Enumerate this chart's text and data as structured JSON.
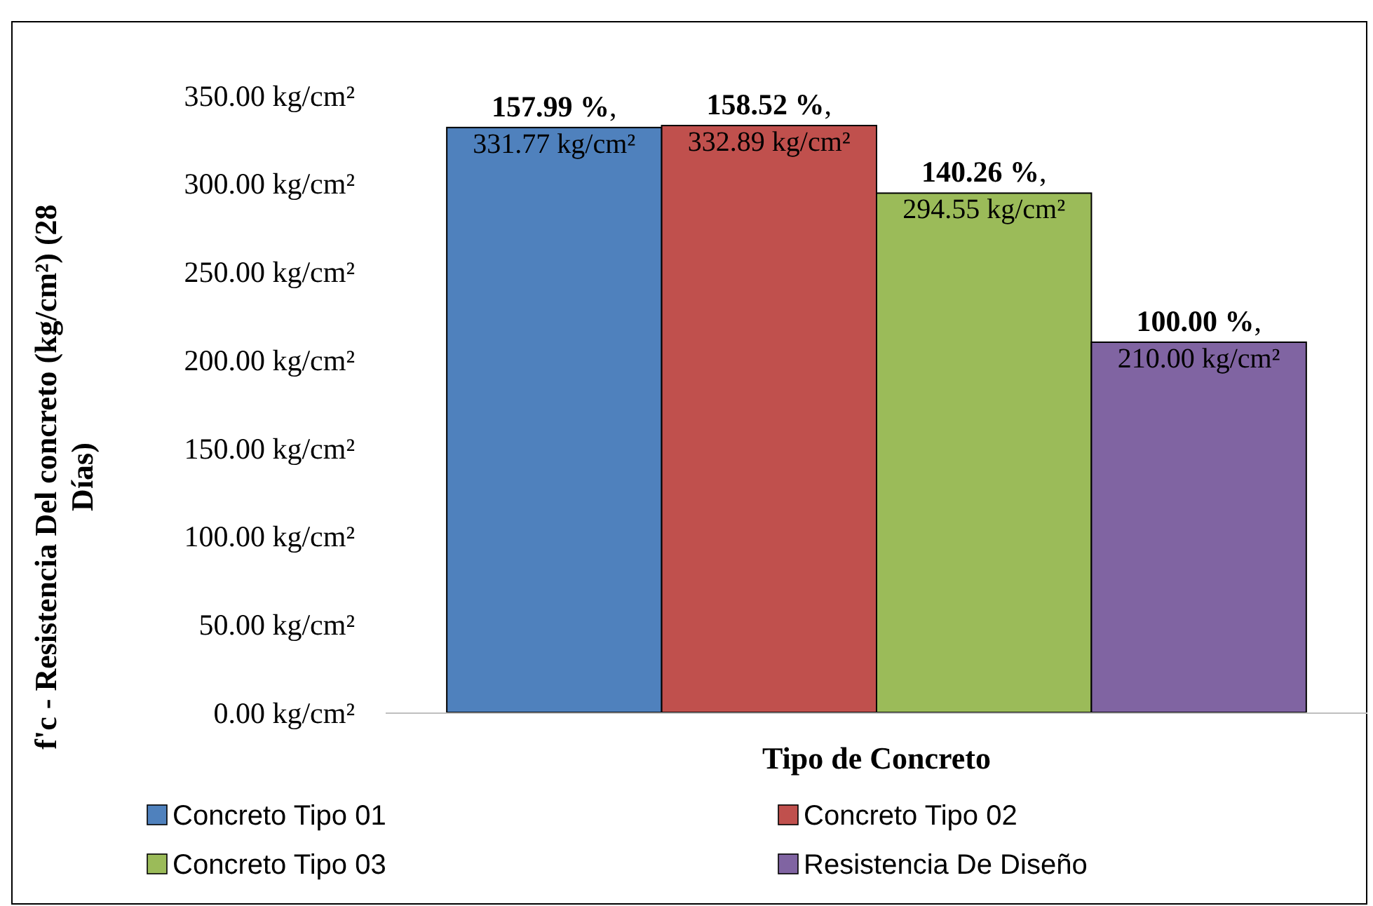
{
  "chart_data": {
    "type": "bar",
    "xlabel": "Tipo de Concreto",
    "ylabel": "f'c - Resistencia Del concreto (kg/cm²) (28 Días)",
    "categories": [
      null
    ],
    "series": [
      {
        "name": "Concreto Tipo 01",
        "color": "#4f81bd",
        "values": [
          331.77
        ],
        "value_labels": [
          "157.99 %, 331.77 kg/cm²"
        ]
      },
      {
        "name": "Concreto Tipo 02",
        "color": "#c0504d",
        "values": [
          332.89
        ],
        "value_labels": [
          "158.52 %, 332.89 kg/cm²"
        ]
      },
      {
        "name": "Concreto Tipo 03",
        "color": "#9bbb59",
        "values": [
          294.55
        ],
        "value_labels": [
          "140.26 %, 294.55 kg/cm²"
        ]
      },
      {
        "name": "Resistencia De Diseño",
        "color": "#8064a2",
        "values": [
          210.0
        ],
        "value_labels": [
          "100.00 %, 210.00 kg/cm²"
        ]
      }
    ],
    "ylim": [
      0,
      350
    ],
    "yticks": [
      {
        "value": 0,
        "label": "0.00 kg/cm²"
      },
      {
        "value": 50,
        "label": "50.00 kg/cm²"
      },
      {
        "value": 100,
        "label": "100.00 kg/cm²"
      },
      {
        "value": 150,
        "label": "150.00 kg/cm²"
      },
      {
        "value": 200,
        "label": "200.00 kg/cm²"
      },
      {
        "value": 250,
        "label": "250.00 kg/cm²"
      },
      {
        "value": 300,
        "label": "300.00 kg/cm²"
      },
      {
        "value": 350,
        "label": "350.00 kg/cm²"
      }
    ],
    "grid": false,
    "legend": "bottom"
  }
}
